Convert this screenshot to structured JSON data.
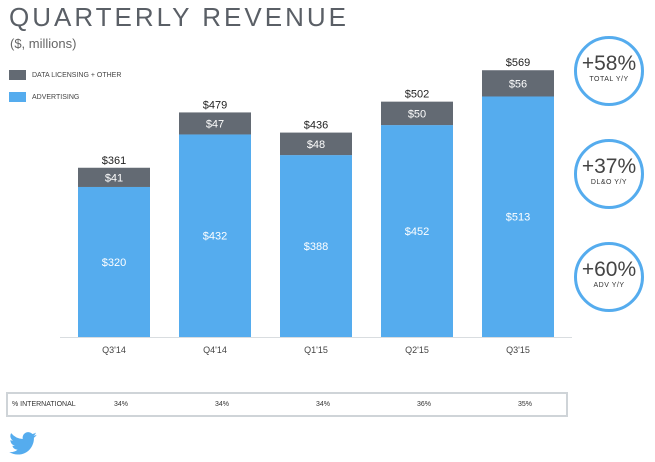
{
  "header": {
    "title": "QUARTERLY REVENUE",
    "subtitle": "($, millions)"
  },
  "legend": {
    "items": [
      {
        "label": "DATA LICENSING + OTHER",
        "color": "#636a73"
      },
      {
        "label": "ADVERTISING",
        "color": "#55acee"
      }
    ]
  },
  "badges": [
    {
      "value": "+58%",
      "label": "TOTAL Y/Y"
    },
    {
      "value": "+37%",
      "label": "DL&O Y/Y"
    },
    {
      "value": "+60%",
      "label": "ADV Y/Y"
    }
  ],
  "international": {
    "label": "% INTERNATIONAL",
    "values": [
      "34%",
      "34%",
      "34%",
      "36%",
      "35%"
    ]
  },
  "colors": {
    "advertising": "#55acee",
    "data_licensing": "#636a73",
    "badge_border": "#55acee"
  },
  "chart_data": {
    "type": "bar",
    "stacked": true,
    "title": "QUARTERLY REVENUE",
    "subtitle": "($, millions)",
    "categories": [
      "Q3'14",
      "Q4'14",
      "Q1'15",
      "Q2'15",
      "Q3'15"
    ],
    "series": [
      {
        "name": "ADVERTISING",
        "values": [
          320,
          432,
          388,
          452,
          513
        ],
        "labels": [
          "$320",
          "$432",
          "$388",
          "$452",
          "$513"
        ]
      },
      {
        "name": "DATA LICENSING + OTHER",
        "values": [
          41,
          47,
          48,
          50,
          56
        ],
        "labels": [
          "$41",
          "$47",
          "$48",
          "$50",
          "$56"
        ]
      }
    ],
    "totals": [
      361,
      479,
      436,
      502,
      569
    ],
    "total_labels": [
      "$361",
      "$479",
      "$436",
      "$502",
      "$569"
    ],
    "ylim": [
      0,
      600
    ],
    "xlabel": "",
    "ylabel": ""
  }
}
